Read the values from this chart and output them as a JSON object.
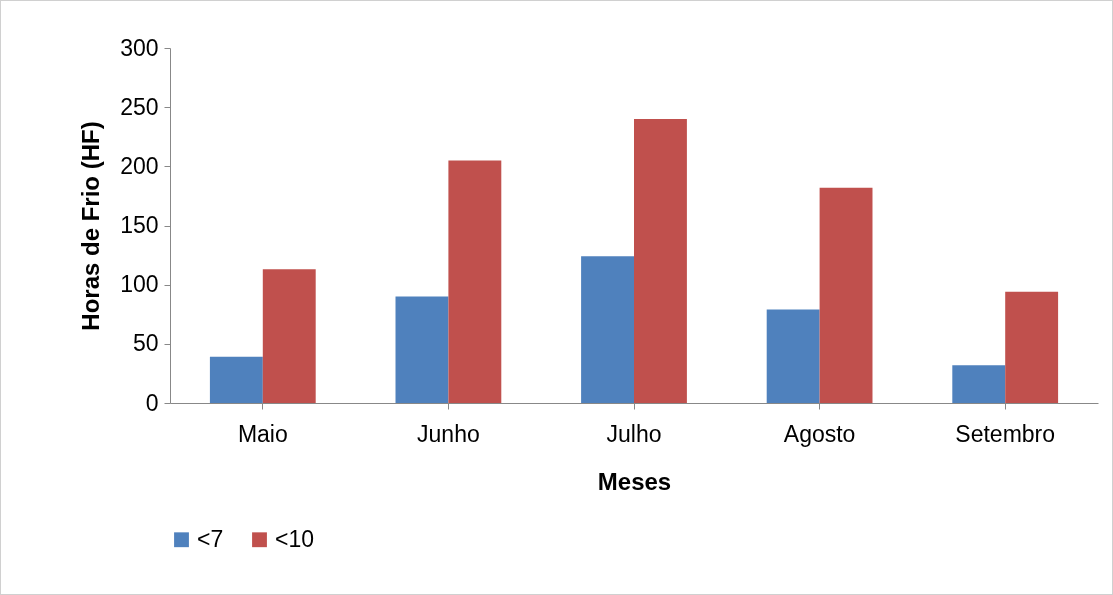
{
  "chart_data": {
    "type": "bar",
    "xlabel": "Meses",
    "ylabel": "Horas de Frio (HF)",
    "categories": [
      "Maio",
      "Junho",
      "Julho",
      "Agosto",
      "Setembro"
    ],
    "series": [
      {
        "name": "<7",
        "color": "#4f81bd",
        "values": [
          39,
          90,
          124,
          79,
          32
        ]
      },
      {
        "name": "<10",
        "color": "#c0504d",
        "values": [
          113,
          205,
          240,
          182,
          94
        ]
      }
    ],
    "ylim": [
      0,
      300
    ],
    "yticks": [
      0,
      50,
      100,
      150,
      200,
      250,
      300
    ],
    "grid": false,
    "legend": "bottom"
  }
}
